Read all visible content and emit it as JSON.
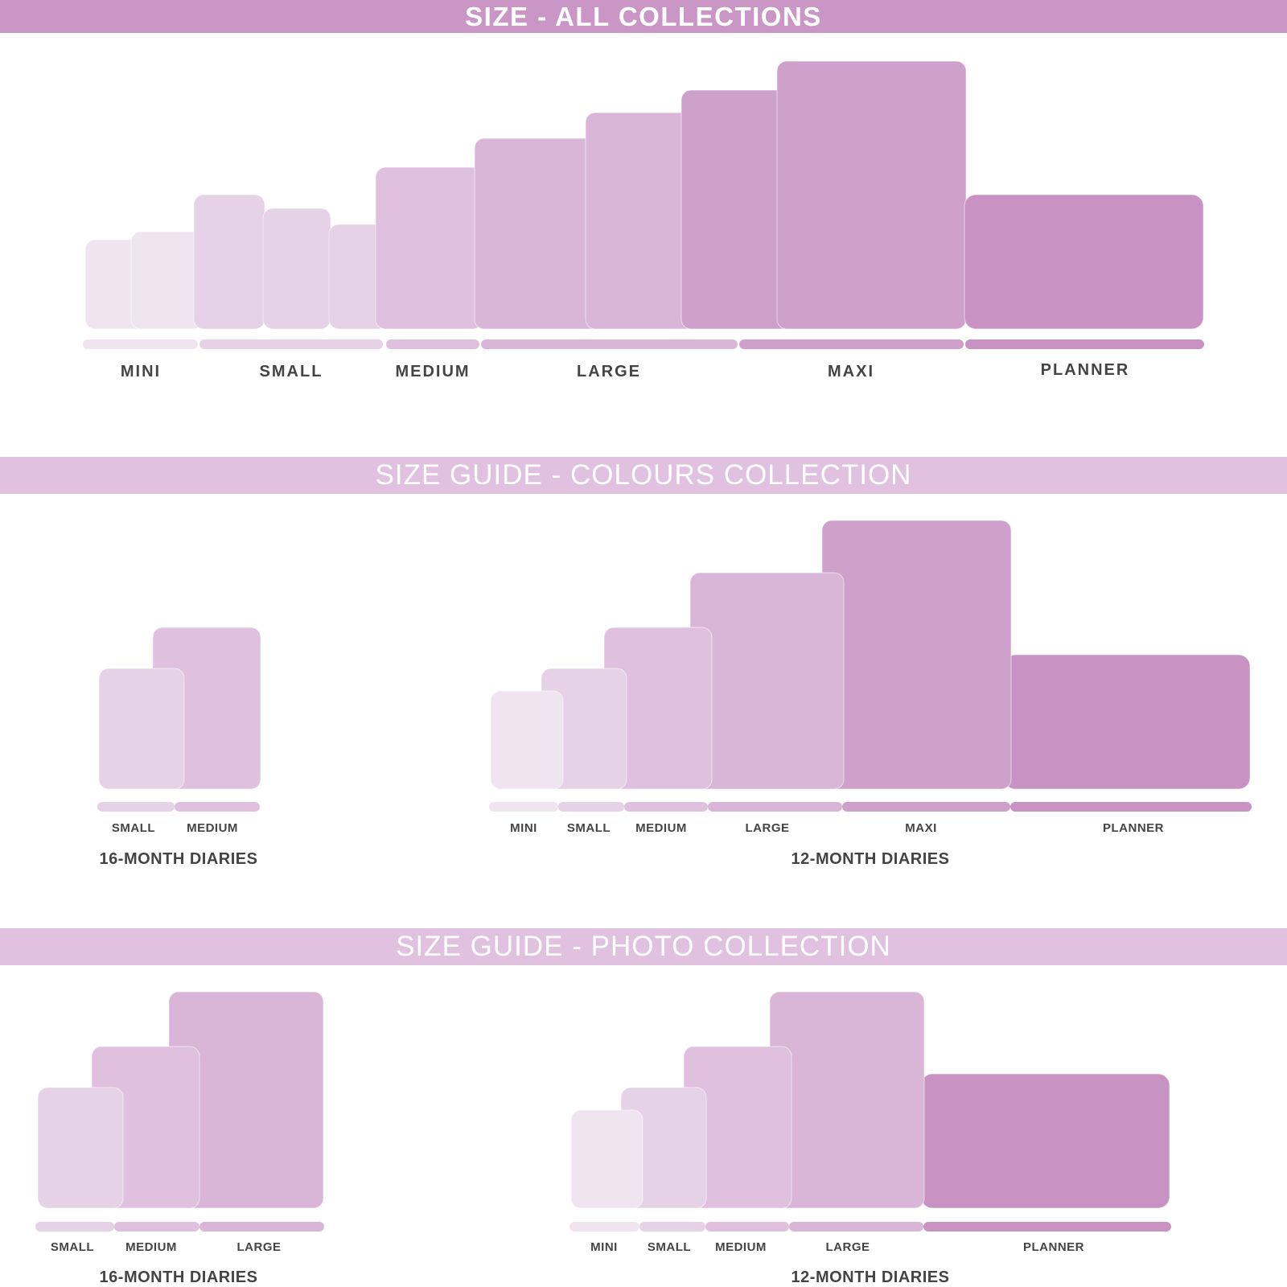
{
  "sections": {
    "all": {
      "title": "SIZE - ALL COLLECTIONS",
      "labels": [
        "MINI",
        "SMALL",
        "MEDIUM",
        "LARGE",
        "MAXI",
        "PLANNER"
      ]
    },
    "colours": {
      "title": "SIZE GUIDE - COLOURS COLLECTION",
      "diary16": {
        "heading": "16-MONTH DIARIES",
        "labels": [
          "SMALL",
          "MEDIUM"
        ]
      },
      "diary12": {
        "heading": "12-MONTH DIARIES",
        "labels": [
          "MINI",
          "SMALL",
          "MEDIUM",
          "LARGE",
          "MAXI",
          "PLANNER"
        ]
      }
    },
    "photo": {
      "title": "SIZE GUIDE - PHOTO COLLECTION",
      "diary16": {
        "heading": "16-MONTH DIARIES",
        "labels": [
          "SMALL",
          "MEDIUM",
          "LARGE"
        ]
      },
      "diary12": {
        "heading": "12-MONTH DIARIES",
        "labels": [
          "MINI",
          "SMALL",
          "MEDIUM",
          "LARGE",
          "PLANNER"
        ]
      }
    }
  },
  "colors": {
    "banner_strong": "#c996c5",
    "banner_light": "#e0c2e0",
    "label_text": "#444444",
    "mini": "#f0e4f0",
    "small": "#e6d2e7",
    "medium": "#dfc1df",
    "large": "#d9b5d8",
    "maxi": "#cea1cb",
    "planner": "#c893c3"
  }
}
